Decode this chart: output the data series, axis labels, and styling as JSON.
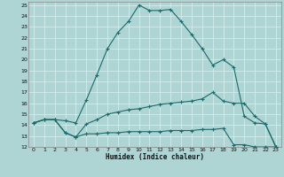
{
  "xlabel": "Humidex (Indice chaleur)",
  "bg_color": "#aed4d4",
  "grid_color": "#d4eded",
  "line_color": "#1a6b6b",
  "xlim": [
    -0.5,
    23.5
  ],
  "ylim": [
    12,
    25.3
  ],
  "xticks": [
    0,
    1,
    2,
    3,
    4,
    5,
    6,
    7,
    8,
    9,
    10,
    11,
    12,
    13,
    14,
    15,
    16,
    17,
    18,
    19,
    20,
    21,
    22,
    23
  ],
  "yticks": [
    12,
    13,
    14,
    15,
    16,
    17,
    18,
    19,
    20,
    21,
    22,
    23,
    24,
    25
  ],
  "line1_x": [
    0,
    1,
    2,
    3,
    4,
    5,
    6,
    7,
    8,
    9,
    10,
    11,
    12,
    13,
    14,
    15,
    16,
    17,
    18,
    19,
    20,
    21,
    22,
    23
  ],
  "line1_y": [
    14.2,
    14.5,
    14.5,
    14.4,
    14.2,
    16.3,
    18.6,
    21.0,
    22.5,
    23.5,
    25.0,
    24.5,
    24.5,
    24.6,
    23.5,
    22.3,
    21.0,
    19.5,
    20.0,
    19.3,
    14.8,
    14.2,
    14.1,
    12.0
  ],
  "line2_x": [
    0,
    1,
    2,
    3,
    4,
    5,
    6,
    7,
    8,
    9,
    10,
    11,
    12,
    13,
    14,
    15,
    16,
    17,
    18,
    19,
    20,
    21,
    22,
    23
  ],
  "line2_y": [
    14.2,
    14.5,
    14.5,
    13.3,
    12.9,
    14.1,
    14.5,
    15.0,
    15.2,
    15.4,
    15.5,
    15.7,
    15.9,
    16.0,
    16.1,
    16.2,
    16.4,
    17.0,
    16.2,
    16.0,
    16.0,
    14.8,
    14.1,
    12.0
  ],
  "line3_x": [
    0,
    1,
    2,
    3,
    4,
    5,
    6,
    7,
    8,
    9,
    10,
    11,
    12,
    13,
    14,
    15,
    16,
    17,
    18,
    19,
    20,
    21,
    22,
    23
  ],
  "line3_y": [
    14.2,
    14.5,
    14.5,
    13.3,
    12.9,
    13.2,
    13.2,
    13.3,
    13.3,
    13.4,
    13.4,
    13.4,
    13.4,
    13.5,
    13.5,
    13.5,
    13.6,
    13.6,
    13.7,
    12.2,
    12.2,
    12.0,
    12.0,
    12.0
  ]
}
